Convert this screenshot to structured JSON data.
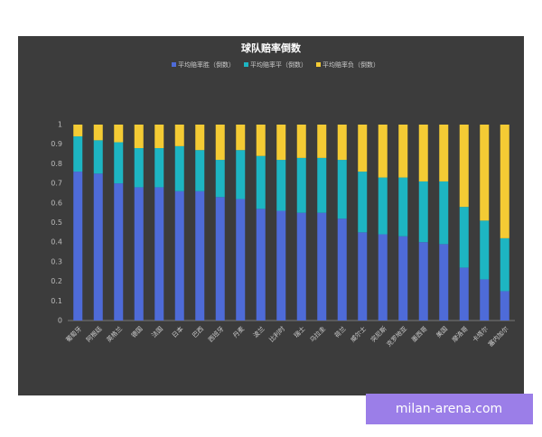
{
  "chart_data": {
    "type": "stacked_bar",
    "title": "球队赔率倒数",
    "categories": [
      "葡萄牙",
      "阿根廷",
      "英格兰",
      "德国",
      "法国",
      "日本",
      "巴西",
      "西班牙",
      "丹麦",
      "波兰",
      "比利时",
      "瑞士",
      "乌拉圭",
      "荷兰",
      "威尔士",
      "突尼斯",
      "克罗地亚",
      "墨西哥",
      "美国",
      "摩洛哥",
      "卡塔尔",
      "塞内加尔"
    ],
    "series": [
      {
        "name": "平均赔率胜（倒数）",
        "color": "#4e6bd8",
        "values": [
          0.76,
          0.75,
          0.7,
          0.68,
          0.68,
          0.66,
          0.66,
          0.63,
          0.62,
          0.57,
          0.56,
          0.55,
          0.55,
          0.52,
          0.45,
          0.44,
          0.43,
          0.4,
          0.39,
          0.27,
          0.21,
          0.15
        ]
      },
      {
        "name": "平均赔率平（倒数）",
        "color": "#1db5c2",
        "values": [
          0.18,
          0.17,
          0.21,
          0.2,
          0.2,
          0.23,
          0.21,
          0.19,
          0.25,
          0.27,
          0.26,
          0.28,
          0.28,
          0.3,
          0.31,
          0.29,
          0.3,
          0.31,
          0.32,
          0.31,
          0.3,
          0.27
        ]
      },
      {
        "name": "平均赔率负（倒数）",
        "color": "#f4cb34",
        "values": [
          0.06,
          0.08,
          0.09,
          0.12,
          0.12,
          0.11,
          0.13,
          0.18,
          0.13,
          0.16,
          0.18,
          0.17,
          0.17,
          0.18,
          0.24,
          0.27,
          0.27,
          0.29,
          0.29,
          0.42,
          0.49,
          0.58
        ]
      }
    ],
    "ylim": [
      0,
      1
    ],
    "yticks": [
      0,
      0.1,
      0.2,
      0.3,
      0.4,
      0.5,
      0.6,
      0.7,
      0.8,
      0.9,
      1
    ],
    "grid": false
  },
  "watermark": "milan-arena.com"
}
